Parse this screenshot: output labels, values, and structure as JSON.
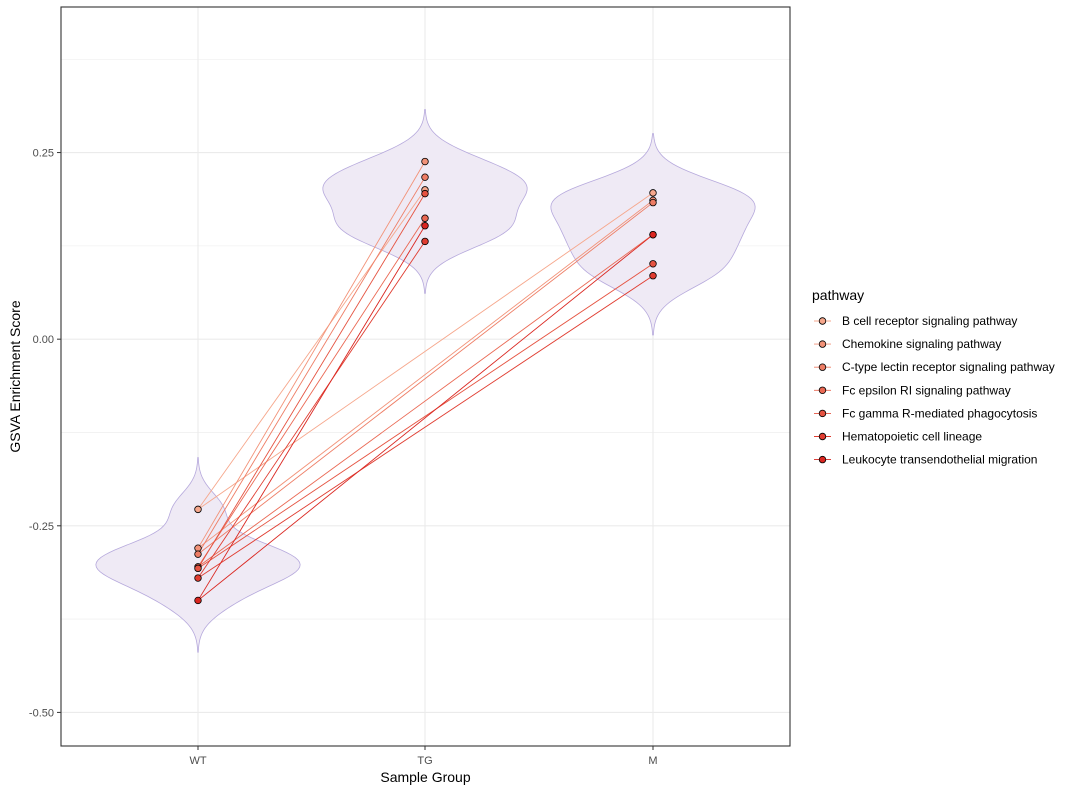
{
  "chart_data": {
    "type": "violin",
    "xlabel": "Sample Group",
    "ylabel": "GSVA Enrichment Score",
    "categories": [
      "WT",
      "TG",
      "M"
    ],
    "ylim": [
      -0.545,
      0.445
    ],
    "yticks": [
      0.25,
      0.0,
      -0.25,
      -0.5
    ],
    "ytick_labels": [
      "0.25",
      "0.00",
      "-0.25",
      "-0.50"
    ],
    "grid": true,
    "legend": {
      "title": "pathway",
      "position": "right"
    },
    "colors": {
      "violin_fill": "#efeaf5",
      "violin_stroke": "#b6a9dc",
      "grid": "#ebebeb",
      "panel_border": "#333333"
    },
    "series": [
      {
        "name": "B cell receptor signaling pathway",
        "color": "#f6a78c",
        "values": [
          -0.228,
          0.2,
          0.196
        ]
      },
      {
        "name": "Chemokine signaling pathway",
        "color": "#f29278",
        "values": [
          -0.28,
          0.238,
          0.186
        ]
      },
      {
        "name": "C-type lectin receptor signaling pathway",
        "color": "#ee7d65",
        "values": [
          -0.288,
          0.217,
          0.183
        ]
      },
      {
        "name": "Fc epsilon RI signaling pathway",
        "color": "#ea6853",
        "values": [
          -0.305,
          0.162,
          0.14
        ]
      },
      {
        "name": "Fc gamma R-mediated phagocytosis",
        "color": "#e55341",
        "values": [
          -0.307,
          0.195,
          0.101
        ]
      },
      {
        "name": "Hematopoietic cell lineage",
        "color": "#e03c30",
        "values": [
          -0.32,
          0.131,
          0.085
        ]
      },
      {
        "name": "Leukocyte transendothelial migration",
        "color": "#da2620",
        "values": [
          -0.35,
          0.152,
          0.14
        ]
      }
    ]
  }
}
